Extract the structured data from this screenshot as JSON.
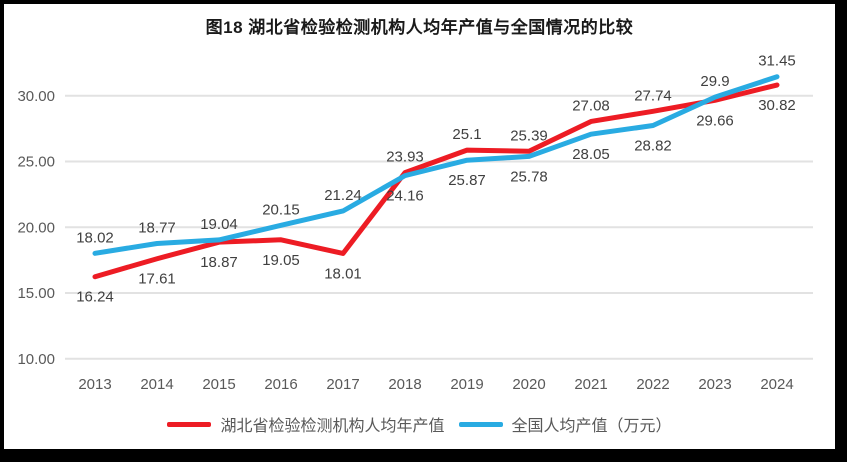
{
  "chart_title": "图18  湖北省检验检测机构人均年产值与全国情况的比较",
  "colors": {
    "hubei_line": "#ed1c24",
    "national_line": "#29abe2",
    "gridline": "#e2e2e2",
    "axis_text": "#595959",
    "data_label_text": "#404040",
    "frame_border": "#000000",
    "background": "#ffffff"
  },
  "chart_data": {
    "type": "line",
    "title": "图18  湖北省检验检测机构人均年产值与全国情况的比较",
    "categories": [
      "2013",
      "2014",
      "2015",
      "2016",
      "2017",
      "2018",
      "2019",
      "2020",
      "2021",
      "2022",
      "2023",
      "2024"
    ],
    "series": [
      {
        "name": "湖北省检验检测机构人均年产值",
        "color": "#ed1c24",
        "label_position": "below",
        "values": [
          16.24,
          17.61,
          18.87,
          19.05,
          18.01,
          24.16,
          25.87,
          25.78,
          28.05,
          28.82,
          29.66,
          30.82
        ]
      },
      {
        "name": "全国人均产值（万元）",
        "color": "#29abe2",
        "label_position": "above",
        "values": [
          18.02,
          18.77,
          19.04,
          20.15,
          21.24,
          23.93,
          25.1,
          25.39,
          27.08,
          27.74,
          29.9,
          31.45
        ]
      }
    ],
    "xlabel": "",
    "ylabel": "",
    "y_axis": {
      "tick_labels": [
        "30.00",
        "25.00",
        "20.00",
        "15.00",
        "10.00"
      ],
      "tick_values": [
        30,
        25,
        20,
        15,
        10
      ],
      "min": 10,
      "max": 32.5
    },
    "grid": true,
    "legend_position": "bottom",
    "data_labels": true
  }
}
